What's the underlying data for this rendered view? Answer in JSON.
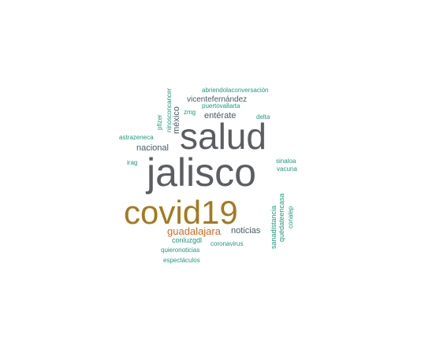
{
  "palette": {
    "dark_gray": "#5a5e62",
    "gold": "#a47a1f",
    "orange": "#d2691e",
    "teal": "#1a9a7f",
    "slate": "#455a64"
  },
  "words": [
    {
      "text": "jalisco",
      "color_key": "dark_gray"
    },
    {
      "text": "salud",
      "color_key": "dark_gray"
    },
    {
      "text": "covid19",
      "color_key": "gold"
    },
    {
      "text": "guadalajara",
      "color_key": "orange"
    },
    {
      "text": "noticias",
      "color_key": "slate"
    },
    {
      "text": "nacional",
      "color_key": "slate"
    },
    {
      "text": "entérate",
      "color_key": "slate"
    },
    {
      "text": "vicentefernández",
      "color_key": "slate"
    },
    {
      "text": "abriendolaconversación",
      "color_key": "teal"
    },
    {
      "text": "puertovallarta",
      "color_key": "teal"
    },
    {
      "text": "zmg",
      "color_key": "teal"
    },
    {
      "text": "delta",
      "color_key": "teal"
    },
    {
      "text": "astrazeneca",
      "color_key": "teal"
    },
    {
      "text": "irag",
      "color_key": "teal"
    },
    {
      "text": "sinaloa",
      "color_key": "teal"
    },
    {
      "text": "vacuna",
      "color_key": "teal"
    },
    {
      "text": "conluzgdl",
      "color_key": "teal"
    },
    {
      "text": "coronavirus",
      "color_key": "teal"
    },
    {
      "text": "quieronoticias",
      "color_key": "teal"
    },
    {
      "text": "espectáculos",
      "color_key": "teal"
    },
    {
      "text": "ninosconcancer",
      "color_key": "teal"
    },
    {
      "text": "pfizer",
      "color_key": "teal"
    },
    {
      "text": "méxico",
      "color_key": "slate"
    },
    {
      "text": "sanadistancia",
      "color_key": "teal"
    },
    {
      "text": "quédateencasa",
      "color_key": "teal"
    },
    {
      "text": "conalep",
      "color_key": "teal"
    }
  ]
}
